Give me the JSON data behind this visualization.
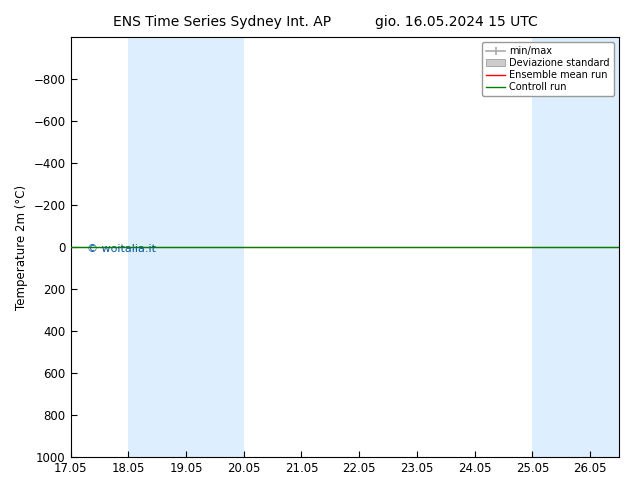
{
  "title_left": "ENS Time Series Sydney Int. AP",
  "title_right": "gio. 16.05.2024 15 UTC",
  "ylabel": "Temperature 2m (°C)",
  "watermark": "© woitalia.it",
  "ylim_bottom": 1000,
  "ylim_top": -1000,
  "yticks": [
    -800,
    -600,
    -400,
    -200,
    0,
    200,
    400,
    600,
    800,
    1000
  ],
  "xlim_start": 17.05,
  "xlim_end": 26.55,
  "xticks": [
    17.05,
    18.05,
    19.05,
    20.05,
    21.05,
    22.05,
    23.05,
    24.05,
    25.05,
    26.05
  ],
  "xtick_labels": [
    "17.05",
    "18.05",
    "19.05",
    "20.05",
    "21.05",
    "22.05",
    "23.05",
    "24.05",
    "25.05",
    "26.05"
  ],
  "shaded_bands": [
    [
      18.05,
      19.05
    ],
    [
      19.05,
      20.05
    ],
    [
      25.05,
      26.05
    ],
    [
      26.05,
      26.55
    ]
  ],
  "shaded_color": "#ddeeff",
  "control_run_y": 0,
  "ensemble_mean_y": 0,
  "minmax_color": "#aaaaaa",
  "stddev_color": "#cccccc",
  "ensemble_color": "red",
  "control_color": "green",
  "background_color": "white",
  "plot_bg_color": "white",
  "legend_entries": [
    "min/max",
    "Deviazione standard",
    "Ensemble mean run",
    "Controll run"
  ],
  "font_size": 8.5,
  "title_font_size": 10,
  "watermark_color": "#0055aa"
}
